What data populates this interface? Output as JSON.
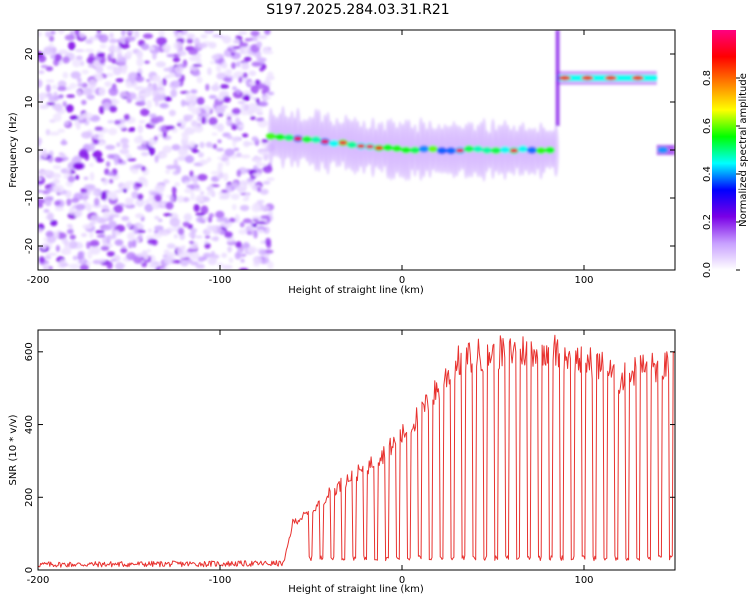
{
  "page": {
    "title": "S197.2025.284.03.31.R21"
  },
  "chart_data": [
    {
      "type": "heatmap",
      "title": "S197.2025.284.03.31.R21",
      "xlabel": "Height of straight line (km)",
      "ylabel": "Frequency (Hz)",
      "xlim": [
        -200,
        150
      ],
      "ylim": [
        -25,
        25
      ],
      "xticks": [
        -200,
        -100,
        0,
        100
      ],
      "yticks": [
        -20,
        -10,
        0,
        10,
        20
      ],
      "colorbar": {
        "label": "Normalized spectral amplitude",
        "range": [
          0,
          1
        ],
        "ticks": [
          0.0,
          0.2,
          0.4,
          0.6,
          0.8
        ],
        "tick_labels": [
          "0.0",
          "0.2",
          "0.4",
          "0.6",
          "0.8"
        ],
        "colors": [
          "#ffffff",
          "#c8a0ff",
          "#7a00e6",
          "#0000ff",
          "#00ffff",
          "#00ff00",
          "#ffff00",
          "#ff8000",
          "#ff0000",
          "#ff0080"
        ]
      },
      "regions": [
        {
          "name": "noise",
          "x": [
            -200,
            -72
          ],
          "y": [
            -25,
            25
          ],
          "amplitude": 0.15
        },
        {
          "name": "carrier",
          "x": [
            -72,
            85
          ],
          "frequency_start": 3,
          "frequency_end": 0,
          "amplitude": 0.5
        },
        {
          "name": "high-tone",
          "x": [
            85,
            140
          ],
          "frequency": 15,
          "amplitude": 0.8
        },
        {
          "name": "edge-tone",
          "x": [
            140,
            150
          ],
          "frequency": 0,
          "amplitude": 0.5
        }
      ]
    },
    {
      "type": "line",
      "xlabel": "Height of straight line (km)",
      "ylabel": "SNR (10 * v/v)",
      "xlim": [
        -200,
        150
      ],
      "ylim": [
        0,
        660
      ],
      "xticks": [
        -200,
        -100,
        0,
        100
      ],
      "yticks": [
        0,
        200,
        400,
        600
      ],
      "series": [
        {
          "name": "SNR",
          "color": "#e8322f",
          "knots": [
            [
              -200,
              15
            ],
            [
              -65,
              18
            ],
            [
              -60,
              130
            ],
            [
              -50,
              160
            ],
            [
              -40,
              210
            ],
            [
              -30,
              250
            ],
            [
              -20,
              280
            ],
            [
              -10,
              320
            ],
            [
              0,
              370
            ],
            [
              10,
              430
            ],
            [
              20,
              500
            ],
            [
              30,
              570
            ],
            [
              40,
              590
            ],
            [
              60,
              600
            ],
            [
              80,
              610
            ],
            [
              90,
              590
            ],
            [
              110,
              560
            ],
            [
              120,
              520
            ],
            [
              130,
              555
            ],
            [
              150,
              560
            ]
          ],
          "dropout_level": 30,
          "dropout_start": -55,
          "dropout_every_km": 6
        }
      ]
    }
  ]
}
